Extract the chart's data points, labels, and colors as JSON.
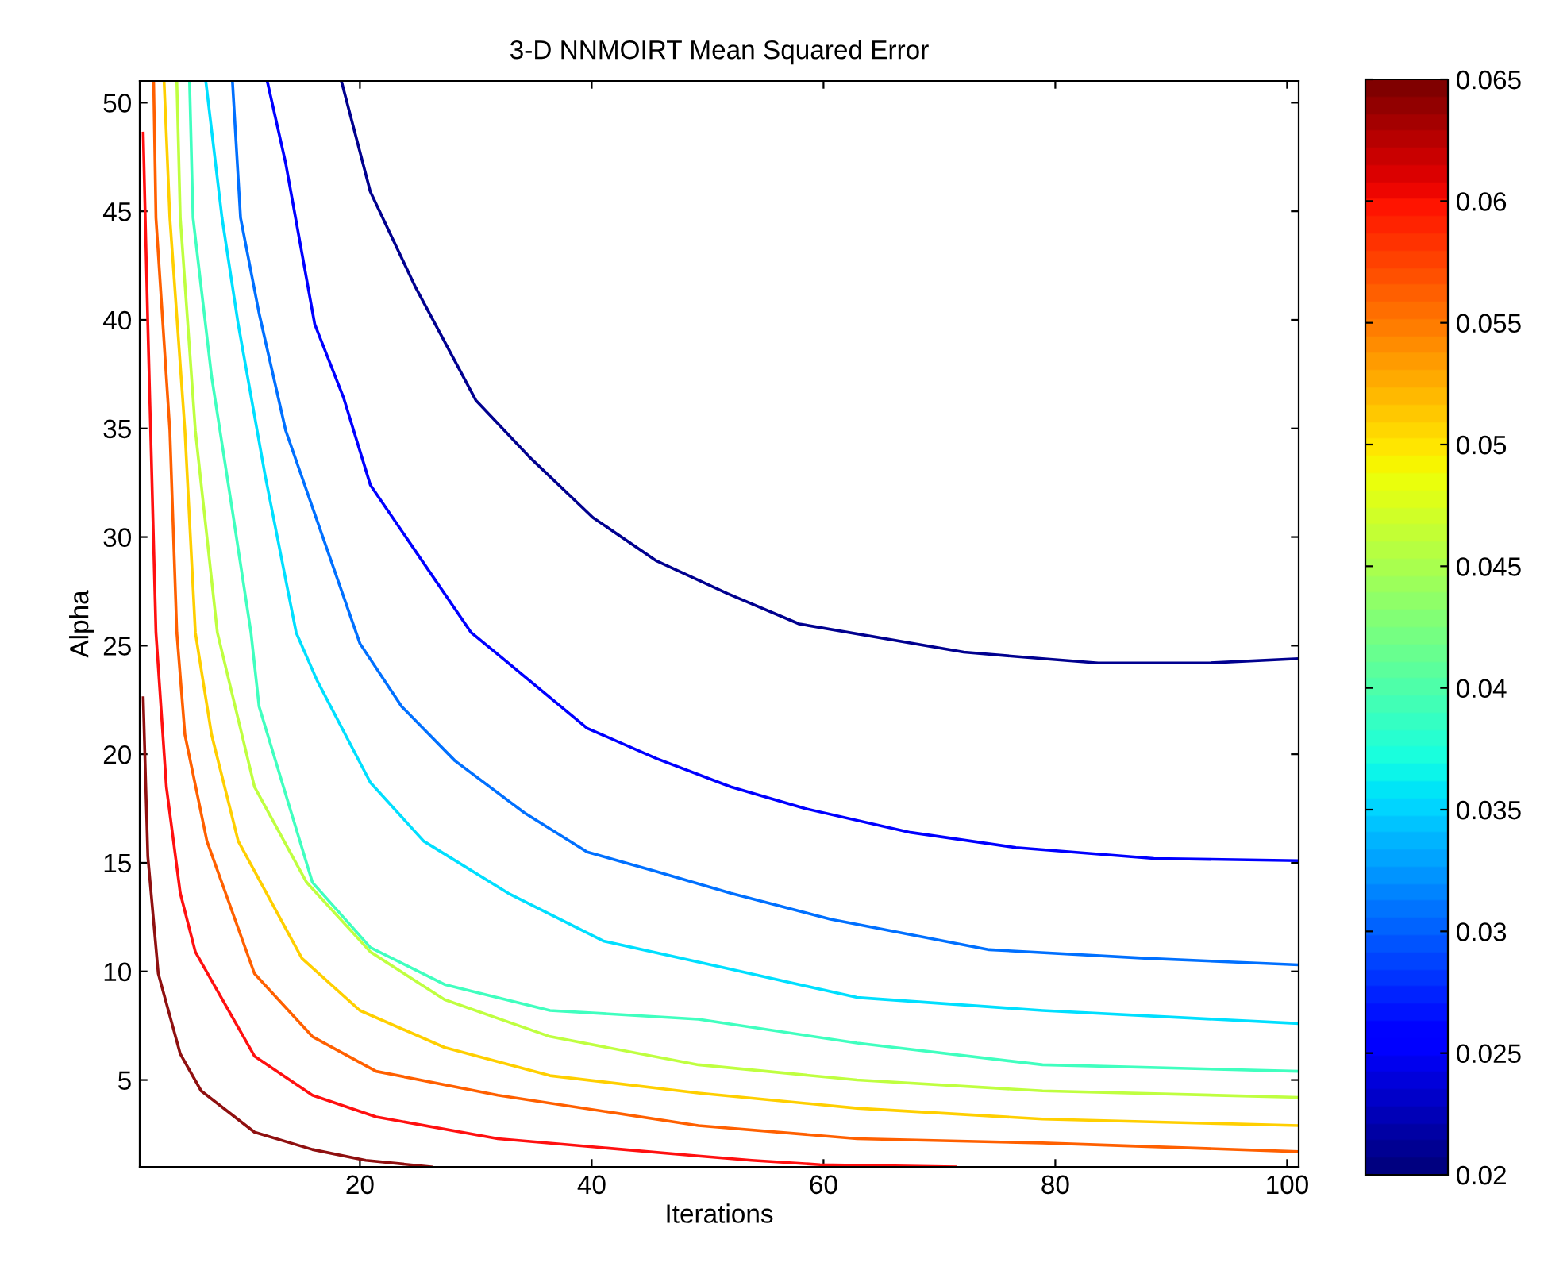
{
  "chart_data": {
    "type": "line",
    "title": "3-D NNMOIRT Mean Squared Error",
    "xlabel": "Iterations",
    "ylabel": "Alpha",
    "xlim": [
      1,
      101
    ],
    "xticks": [
      20,
      40,
      60,
      80,
      100
    ],
    "ylim": [
      1,
      51
    ],
    "yticks": [
      5,
      10,
      15,
      20,
      25,
      30,
      35,
      40,
      45,
      50
    ],
    "clim": [
      0.02,
      0.065
    ],
    "cticks": [
      0.02,
      0.025,
      0.03,
      0.035,
      0.04,
      0.045,
      0.05,
      0.055,
      0.06,
      0.065
    ],
    "series": [
      {
        "color": "#00008f",
        "x": [
          18.4,
          20.9,
          24.8,
          30.0,
          34.6,
          40.1,
          45.6,
          51.7,
          57.9,
          72.1,
          78.9,
          83.7,
          93.1,
          101
        ],
        "values": [
          51,
          45.9,
          41.5,
          36.3,
          33.7,
          30.9,
          28.9,
          27.4,
          26.0,
          24.7,
          24.4,
          24.2,
          24.2,
          24.4
        ]
      },
      {
        "color": "#0000ff",
        "x": [
          12.0,
          13.6,
          16.1,
          18.6,
          20.9,
          25.5,
          29.6,
          31.9,
          39.6,
          45.6,
          52.0,
          58.4,
          67.5,
          76.6,
          88.5,
          101
        ],
        "values": [
          51,
          47.2,
          39.8,
          36.4,
          32.4,
          28.8,
          25.6,
          24.6,
          21.2,
          19.8,
          18.5,
          17.5,
          16.4,
          15.7,
          15.2,
          15.1
        ]
      },
      {
        "color": "#0070ff",
        "x": [
          9.0,
          9.7,
          11.3,
          13.6,
          16.8,
          20.0,
          23.6,
          28.2,
          34.2,
          39.6,
          45.6,
          52.0,
          60.6,
          74.3,
          88.0,
          101
        ],
        "values": [
          51,
          44.7,
          40.3,
          34.9,
          30.0,
          25.1,
          22.2,
          19.7,
          17.3,
          15.5,
          14.6,
          13.6,
          12.4,
          11.0,
          10.6,
          10.3
        ]
      },
      {
        "color": "#00dfff",
        "x": [
          6.7,
          8.1,
          9.5,
          11.8,
          14.5,
          16.3,
          20.9,
          25.5,
          32.8,
          41.0,
          52.0,
          62.9,
          78.9,
          101
        ],
        "values": [
          51,
          44.7,
          39.8,
          32.9,
          25.6,
          23.4,
          18.7,
          16.0,
          13.6,
          11.4,
          10.1,
          8.8,
          8.2,
          7.6
        ]
      },
      {
        "color": "#40ffbf",
        "x": [
          5.3,
          5.6,
          7.2,
          9.0,
          10.6,
          11.3,
          15.9,
          20.9,
          27.3,
          36.4,
          49.2,
          62.9,
          78.9,
          101
        ],
        "values": [
          51,
          44.7,
          37.4,
          31.2,
          25.6,
          22.2,
          14.1,
          11.1,
          9.4,
          8.2,
          7.8,
          6.7,
          5.7,
          5.4
        ]
      },
      {
        "color": "#bfff40",
        "x": [
          4.2,
          4.5,
          5.8,
          7.7,
          10.9,
          15.4,
          20.9,
          27.3,
          36.4,
          49.2,
          62.9,
          78.9,
          101
        ],
        "values": [
          51,
          44.7,
          34.9,
          25.6,
          18.5,
          14.1,
          10.9,
          8.7,
          7.0,
          5.7,
          5.0,
          4.5,
          4.2
        ]
      },
      {
        "color": "#ffcf00",
        "x": [
          3.1,
          3.6,
          4.9,
          5.8,
          7.2,
          9.5,
          15.0,
          20.0,
          27.3,
          36.4,
          49.2,
          62.9,
          78.9,
          101
        ],
        "values": [
          51,
          44.7,
          34.9,
          25.6,
          20.9,
          16.0,
          10.6,
          8.2,
          6.5,
          5.2,
          4.4,
          3.7,
          3.2,
          2.9
        ]
      },
      {
        "color": "#ff6000",
        "x": [
          2.2,
          2.4,
          3.6,
          4.2,
          4.9,
          6.8,
          10.9,
          15.9,
          21.4,
          31.9,
          49.2,
          62.9,
          78.9,
          101
        ],
        "values": [
          51,
          44.7,
          34.9,
          25.6,
          20.9,
          16.0,
          9.9,
          7.0,
          5.4,
          4.3,
          2.9,
          2.3,
          2.1,
          1.7
        ]
      },
      {
        "color": "#ff1010",
        "x": [
          1.3,
          1.7,
          2.4,
          3.3,
          4.5,
          5.8,
          10.9,
          15.9,
          21.4,
          31.9,
          49.2,
          53.8,
          59.7,
          71.4
        ],
        "values": [
          48.6,
          39.8,
          25.6,
          18.5,
          13.6,
          10.9,
          6.1,
          4.3,
          3.3,
          2.3,
          1.5,
          1.3,
          1.1,
          1.0
        ]
      },
      {
        "color": "#8f1010",
        "x": [
          1.3,
          1.7,
          2.6,
          4.5,
          6.3,
          10.9,
          15.9,
          20.5,
          26.2
        ],
        "values": [
          22.6,
          15.3,
          9.9,
          6.2,
          4.5,
          2.6,
          1.8,
          1.3,
          1.0
        ]
      }
    ]
  }
}
